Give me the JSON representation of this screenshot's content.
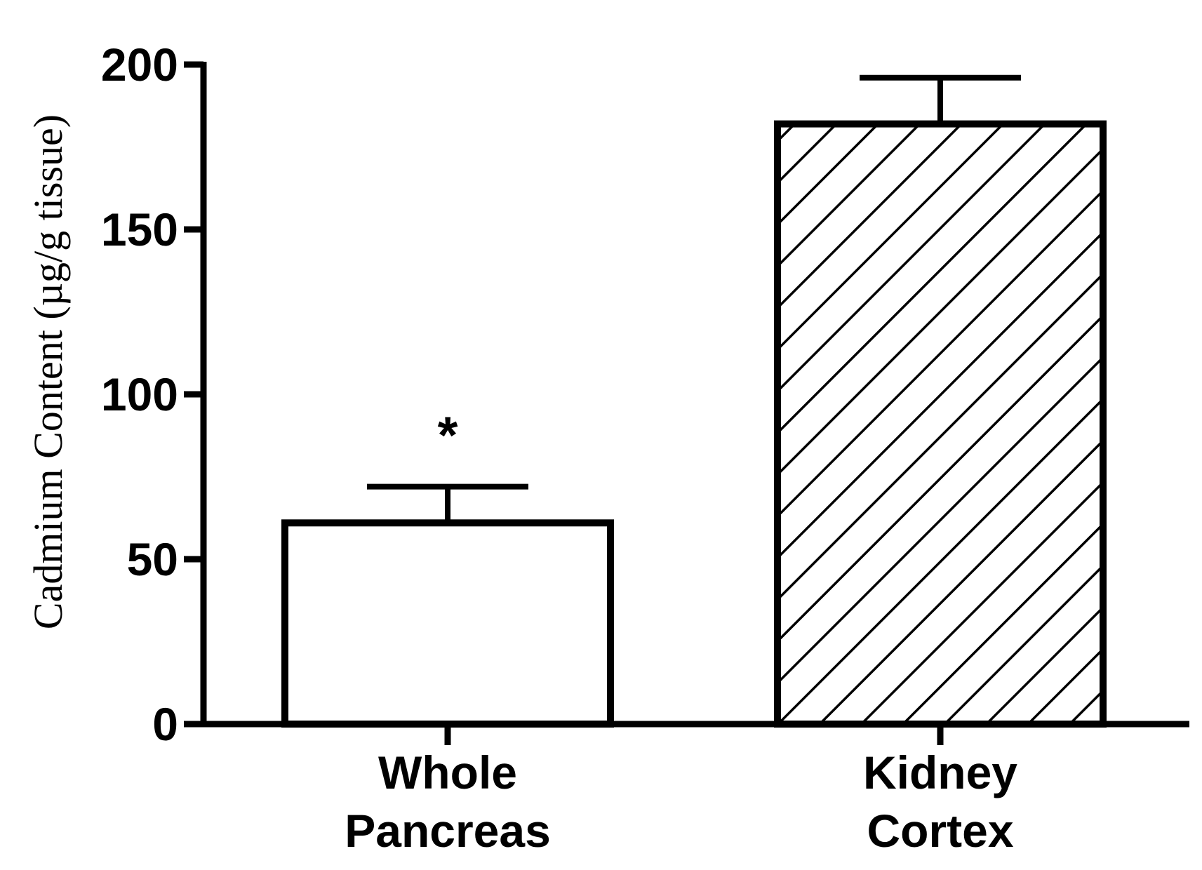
{
  "chart_data": {
    "type": "bar",
    "ylabel": "Cadmium Content (µg/g tissue)",
    "ylim": [
      0,
      200
    ],
    "yticks": [
      "0",
      "50",
      "100",
      "150",
      "200"
    ],
    "categories": [
      [
        "Whole",
        "Pancreas"
      ],
      [
        "Kidney",
        "Cortex"
      ]
    ],
    "values": [
      61,
      182
    ],
    "errors": [
      11,
      14
    ],
    "fills": [
      "plain",
      "diagonal-hatch"
    ],
    "annotations": [
      {
        "category": 0,
        "text": "*"
      }
    ],
    "colors": {
      "ink": "#000000",
      "background": "#ffffff"
    }
  }
}
